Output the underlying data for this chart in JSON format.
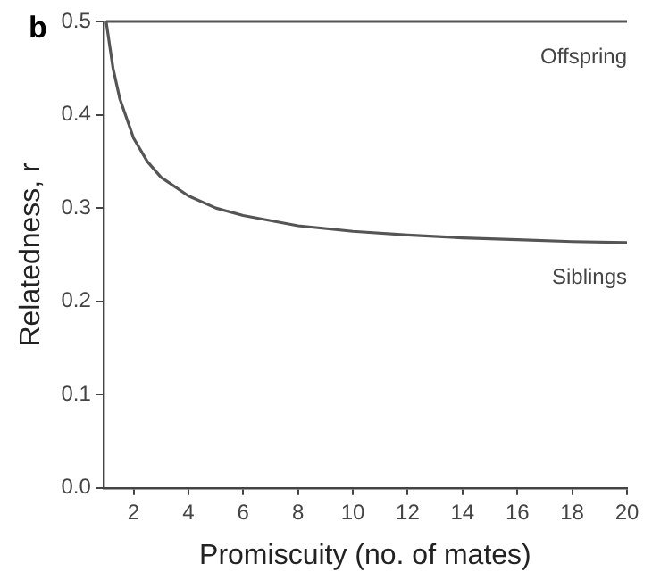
{
  "chart_data": {
    "type": "line",
    "xlabel": "Promiscuity (no. of mates)",
    "ylabel": "Relatedness, r",
    "annotations": [
      "b"
    ],
    "xlim": [
      0.9,
      20
    ],
    "xticks": [
      2,
      4,
      6,
      8,
      10,
      12,
      14,
      16,
      18,
      20
    ],
    "ylim": [
      0,
      0.5
    ],
    "yticks": [
      {
        "value": 0,
        "label": "0.0"
      },
      {
        "value": 0.1,
        "label": "0.1"
      },
      {
        "value": 0.2,
        "label": "0.2"
      },
      {
        "value": 0.3,
        "label": "0.3"
      },
      {
        "value": 0.4,
        "label": "0.4"
      },
      {
        "value": 0.5,
        "label": "0.5"
      }
    ],
    "grid": false,
    "legend": false,
    "marker": "none",
    "line_style": "solid",
    "series": [
      {
        "name": "Offspring",
        "color": "#555555",
        "x": [
          1,
          20
        ],
        "values": [
          0.5,
          0.5
        ]
      },
      {
        "name": "Siblings",
        "color": "#555555",
        "x": [
          1,
          1.25,
          1.5,
          2,
          2.5,
          3,
          4,
          5,
          6,
          8,
          10,
          12,
          14,
          16,
          18,
          20
        ],
        "values": [
          0.5,
          0.45,
          0.417,
          0.375,
          0.35,
          0.333,
          0.313,
          0.3,
          0.292,
          0.281,
          0.275,
          0.271,
          0.268,
          0.266,
          0.264,
          0.263
        ]
      }
    ]
  }
}
